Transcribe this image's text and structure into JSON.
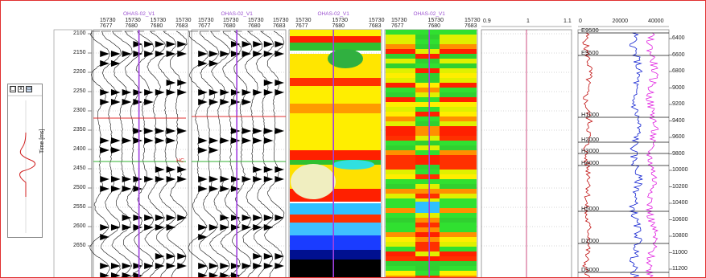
{
  "controls": {
    "x_label": "x"
  },
  "time_axis": {
    "label": "Time [ms]",
    "ticks": [
      "2100",
      "2150",
      "2200",
      "2250",
      "2300",
      "2350",
      "2400",
      "2450",
      "2500",
      "2550",
      "2600",
      "2650"
    ]
  },
  "tracks": [
    {
      "name": "OHAS-02_V1",
      "cdp_top": [
        "15730",
        "15730",
        "15730",
        "15730"
      ],
      "cdp_bottom": [
        "7677",
        "7680",
        "7680",
        "7683"
      ]
    },
    {
      "name": "OHAS-02_V1",
      "cdp_top": [
        "15730",
        "15730",
        "15730",
        "15730"
      ],
      "cdp_bottom": [
        "7677",
        "7680",
        "7680",
        "7683"
      ]
    },
    {
      "name": "OHAS-02_V1",
      "cdp_top": [
        "15730",
        "15730",
        "15730"
      ],
      "cdp_bottom": [
        "7677",
        "7680",
        "7683"
      ]
    },
    {
      "name": "OHAS-02_V1",
      "cdp_top": [
        "15730",
        "15730",
        "15730"
      ],
      "cdp_bottom": [
        "7677",
        "7680",
        "7683"
      ]
    }
  ],
  "scale_track": {
    "ticks": [
      "0.9",
      "1",
      "1.1"
    ]
  },
  "log_track": {
    "top_ticks": [
      "0",
      "20000",
      "40000"
    ]
  },
  "depth_axis": {
    "ticks": [
      "6400",
      "6600",
      "6800",
      "9000",
      "9200",
      "9400",
      "9600",
      "9800",
      "10000",
      "10200",
      "10400",
      "10600",
      "10800",
      "11000",
      "11200"
    ]
  },
  "horizons": [
    "E9500",
    "E9500",
    "H1000",
    "H2000",
    "H3000",
    "H4000",
    "H5000",
    "D2000",
    "D3000"
  ],
  "horizon_seis_label": "HC",
  "colors": {
    "frame": "#e03030",
    "well": "#a040e0",
    "horizon_red": "#e03030",
    "horizon_green": "#30b030"
  }
}
